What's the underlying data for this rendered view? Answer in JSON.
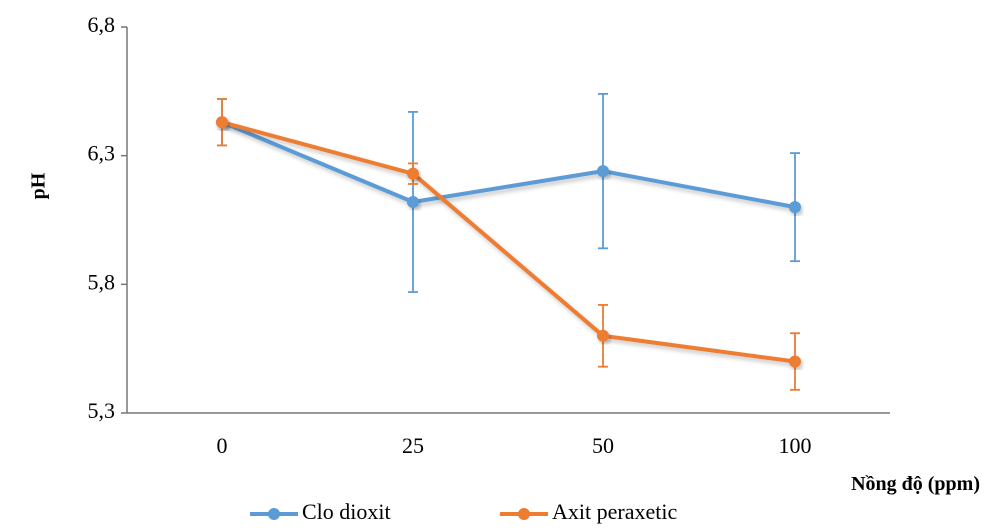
{
  "chart_data": {
    "type": "line",
    "categories": [
      "0",
      "25",
      "50",
      "100"
    ],
    "xlabel": "Nồng độ (ppm)",
    "ylabel": "pH",
    "ylim": [
      5.3,
      6.8
    ],
    "yticks": [
      "5,3",
      "5,8",
      "6,3",
      "6,8"
    ],
    "ytick_values": [
      5.3,
      5.8,
      6.3,
      6.8
    ],
    "grid": false,
    "legend_position": "bottom",
    "series": [
      {
        "name": "Clo dioxit",
        "color": "#5B9BD5",
        "values": [
          6.43,
          6.12,
          6.24,
          6.1
        ],
        "error": [
          0.09,
          0.35,
          0.3,
          0.21
        ]
      },
      {
        "name": "Axit peraxetic",
        "color": "#ED7D31",
        "values": [
          6.43,
          6.23,
          5.6,
          5.5
        ],
        "error": [
          0.09,
          0.04,
          0.12,
          0.11
        ]
      }
    ]
  }
}
